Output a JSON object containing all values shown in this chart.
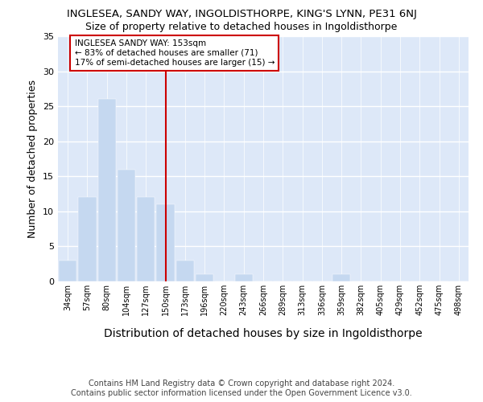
{
  "title": "INGLESEA, SANDY WAY, INGOLDISTHORPE, KING'S LYNN, PE31 6NJ",
  "subtitle": "Size of property relative to detached houses in Ingoldisthorpe",
  "xlabel": "Distribution of detached houses by size in Ingoldisthorpe",
  "ylabel": "Number of detached properties",
  "categories": [
    "34sqm",
    "57sqm",
    "80sqm",
    "104sqm",
    "127sqm",
    "150sqm",
    "173sqm",
    "196sqm",
    "220sqm",
    "243sqm",
    "266sqm",
    "289sqm",
    "313sqm",
    "336sqm",
    "359sqm",
    "382sqm",
    "405sqm",
    "429sqm",
    "452sqm",
    "475sqm",
    "498sqm"
  ],
  "values": [
    3,
    12,
    26,
    16,
    12,
    11,
    3,
    1,
    0,
    1,
    0,
    0,
    0,
    0,
    1,
    0,
    0,
    0,
    0,
    0,
    0
  ],
  "bar_color": "#c5d8f0",
  "bar_edge_color": "#c5d8f0",
  "vline_x_index": 5,
  "vline_color": "#cc0000",
  "annotation_text": "INGLESEA SANDY WAY: 153sqm\n← 83% of detached houses are smaller (71)\n17% of semi-detached houses are larger (15) →",
  "annotation_box_color": "#cc0000",
  "ylim": [
    0,
    35
  ],
  "yticks": [
    0,
    5,
    10,
    15,
    20,
    25,
    30,
    35
  ],
  "background_color": "#dde8f8",
  "footer": "Contains HM Land Registry data © Crown copyright and database right 2024.\nContains public sector information licensed under the Open Government Licence v3.0.",
  "title_fontsize": 9.5,
  "subtitle_fontsize": 9,
  "xlabel_fontsize": 10,
  "ylabel_fontsize": 9
}
